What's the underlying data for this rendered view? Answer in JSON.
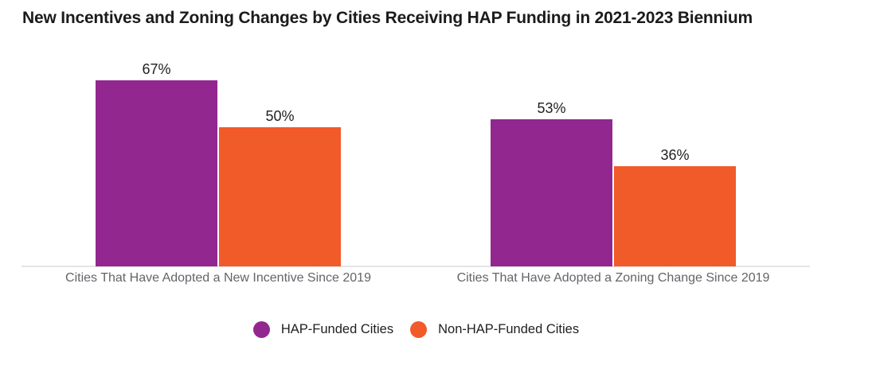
{
  "title": "New Incentives and Zoning Changes by Cities Receiving HAP Funding in 2021-2023 Biennium",
  "colors": {
    "hap_purple": "#92278F",
    "non_hap_orange": "#F15A29",
    "axis_line": "#e4e4e6",
    "category_text": "#636569",
    "value_text": "#212121",
    "title_text": "#1b1b1b"
  },
  "legend": [
    {
      "label": "HAP-Funded Cities",
      "color": "#92278F"
    },
    {
      "label": "Non-HAP-Funded Cities",
      "color": "#F15A29"
    }
  ],
  "chart_data": {
    "type": "bar",
    "title": "New Incentives and Zoning Changes by Cities Receiving HAP Funding in 2021-2023 Biennium",
    "categories": [
      "Cities That Have Adopted a New Incentive Since 2019",
      "Cities That Have Adopted a Zoning Change Since 2019"
    ],
    "series": [
      {
        "name": "HAP-Funded Cities",
        "color": "#92278F",
        "values": [
          67,
          53
        ],
        "labels": [
          "67%",
          "53%"
        ]
      },
      {
        "name": "Non-HAP-Funded Cities",
        "color": "#F15A29",
        "values": [
          50,
          36
        ],
        "labels": [
          "50%",
          "36%"
        ]
      }
    ],
    "unit": "%",
    "ylim": [
      0,
      100
    ],
    "grid": false,
    "value_labels_shown": true,
    "legend_position": "bottom",
    "xlabel": "",
    "ylabel": ""
  }
}
